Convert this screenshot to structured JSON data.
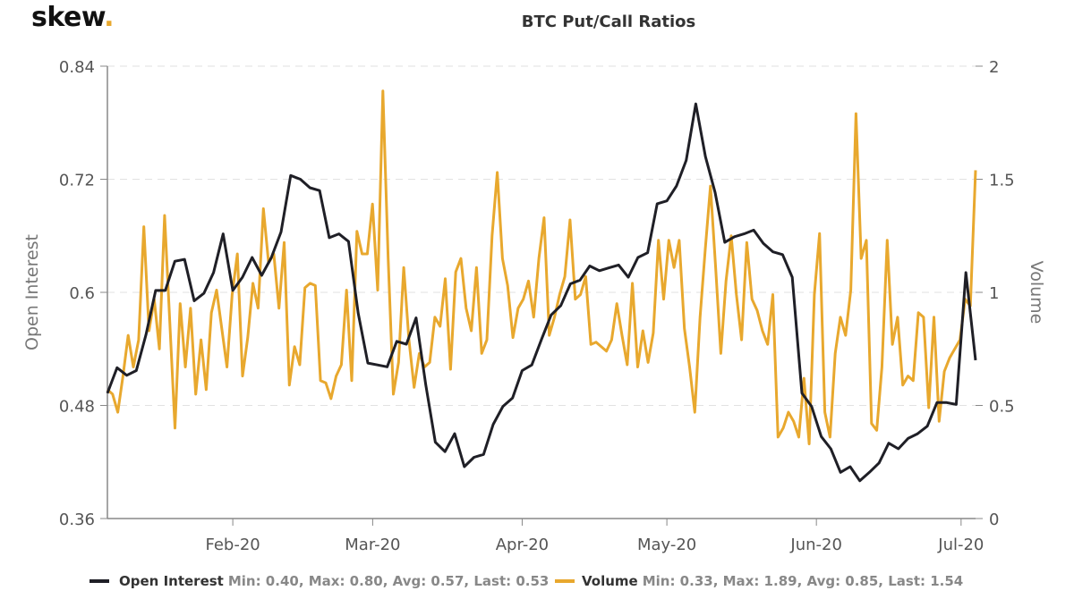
{
  "logo": {
    "text": "skew",
    "dot": ".",
    "dot_color": "#e8a82e"
  },
  "chart_data": {
    "type": "line",
    "title": "BTC Put/Call Ratios",
    "x_start": "2020-01-06",
    "x_end": "2020-07-04",
    "x_ticks": [
      {
        "label": "Feb-20",
        "date": "2020-02-01"
      },
      {
        "label": "Mar-20",
        "date": "2020-03-01"
      },
      {
        "label": "Apr-20",
        "date": "2020-04-01"
      },
      {
        "label": "May-20",
        "date": "2020-05-01"
      },
      {
        "label": "Jun-20",
        "date": "2020-06-01"
      },
      {
        "label": "Jul-20",
        "date": "2020-07-01"
      }
    ],
    "y_left": {
      "label": "Open Interest",
      "range": [
        0.36,
        0.84
      ],
      "ticks": [
        "0.36",
        "0.48",
        "0.6",
        "0.72",
        "0.84"
      ]
    },
    "y_right": {
      "label": "Volume",
      "range": [
        0,
        2
      ],
      "ticks": [
        "0",
        "0.5",
        "1",
        "1.5",
        "2"
      ]
    },
    "grid": true,
    "legend_position": "bottom",
    "series": [
      {
        "name": "Open Interest",
        "axis": "left",
        "color": "#1f1f26",
        "stats": "Min: 0.40, Max: 0.80, Avg: 0.57, Last: 0.53",
        "values": [
          0.493,
          0.52,
          0.512,
          0.517,
          0.555,
          0.602,
          0.602,
          0.633,
          0.635,
          0.591,
          0.599,
          0.621,
          0.662,
          0.602,
          0.616,
          0.637,
          0.618,
          0.637,
          0.664,
          0.724,
          0.72,
          0.711,
          0.708,
          0.658,
          0.662,
          0.654,
          0.578,
          0.525,
          0.523,
          0.521,
          0.548,
          0.545,
          0.573,
          0.502,
          0.441,
          0.431,
          0.45,
          0.415,
          0.425,
          0.428,
          0.46,
          0.479,
          0.488,
          0.517,
          0.523,
          0.55,
          0.576,
          0.586,
          0.609,
          0.613,
          0.628,
          0.623,
          0.626,
          0.629,
          0.616,
          0.637,
          0.642,
          0.694,
          0.697,
          0.713,
          0.74,
          0.8,
          0.744,
          0.706,
          0.653,
          0.659,
          0.662,
          0.666,
          0.652,
          0.643,
          0.64,
          0.616,
          0.493,
          0.479,
          0.447,
          0.434,
          0.409,
          0.415,
          0.4,
          0.409,
          0.419,
          0.44,
          0.434,
          0.445,
          0.45,
          0.458,
          0.483,
          0.483,
          0.481,
          0.621,
          0.528
        ]
      },
      {
        "name": "Volume",
        "axis": "right",
        "color": "#e8a82e",
        "stats": "Min: 0.33, Max: 1.89, Avg: 0.85, Last: 1.54",
        "values": [
          0.57,
          0.55,
          0.47,
          0.63,
          0.81,
          0.67,
          0.79,
          1.29,
          0.83,
          0.97,
          0.75,
          1.34,
          0.87,
          0.4,
          0.95,
          0.67,
          0.93,
          0.55,
          0.79,
          0.57,
          0.91,
          1.01,
          0.84,
          0.67,
          0.99,
          1.17,
          0.63,
          0.8,
          1.04,
          0.93,
          1.37,
          1.13,
          1.17,
          0.93,
          1.22,
          0.59,
          0.76,
          0.68,
          1.02,
          1.04,
          1.03,
          0.61,
          0.6,
          0.53,
          0.63,
          0.68,
          1.01,
          0.61,
          1.27,
          1.17,
          1.17,
          1.39,
          1.01,
          1.89,
          1.15,
          0.55,
          0.69,
          1.11,
          0.79,
          0.58,
          0.73,
          0.67,
          0.69,
          0.89,
          0.85,
          1.06,
          0.66,
          1.09,
          1.15,
          0.93,
          0.83,
          1.11,
          0.73,
          0.79,
          1.25,
          1.53,
          1.15,
          1.03,
          0.8,
          0.93,
          0.97,
          1.05,
          0.89,
          1.15,
          1.33,
          0.81,
          0.89,
          0.99,
          1.07,
          1.32,
          0.97,
          0.99,
          1.07,
          0.77,
          0.78,
          0.76,
          0.74,
          0.79,
          0.95,
          0.81,
          0.68,
          1.04,
          0.67,
          0.83,
          0.69,
          0.82,
          1.23,
          0.97,
          1.23,
          1.11,
          1.23,
          0.84,
          0.67,
          0.47,
          0.89,
          1.19,
          1.47,
          1.11,
          0.73,
          1.05,
          1.25,
          0.99,
          0.79,
          1.22,
          0.97,
          0.92,
          0.83,
          0.77,
          0.99,
          0.36,
          0.4,
          0.47,
          0.43,
          0.36,
          0.62,
          0.33,
          0.99,
          1.26,
          0.47,
          0.36,
          0.73,
          0.89,
          0.81,
          1.01,
          1.79,
          1.15,
          1.23,
          0.42,
          0.39,
          0.67,
          1.23,
          0.77,
          0.89,
          0.59,
          0.63,
          0.61,
          0.91,
          0.89,
          0.49,
          0.89,
          0.43,
          0.65,
          0.71,
          0.75,
          0.79,
          0.97,
          0.94,
          1.54
        ]
      }
    ]
  }
}
